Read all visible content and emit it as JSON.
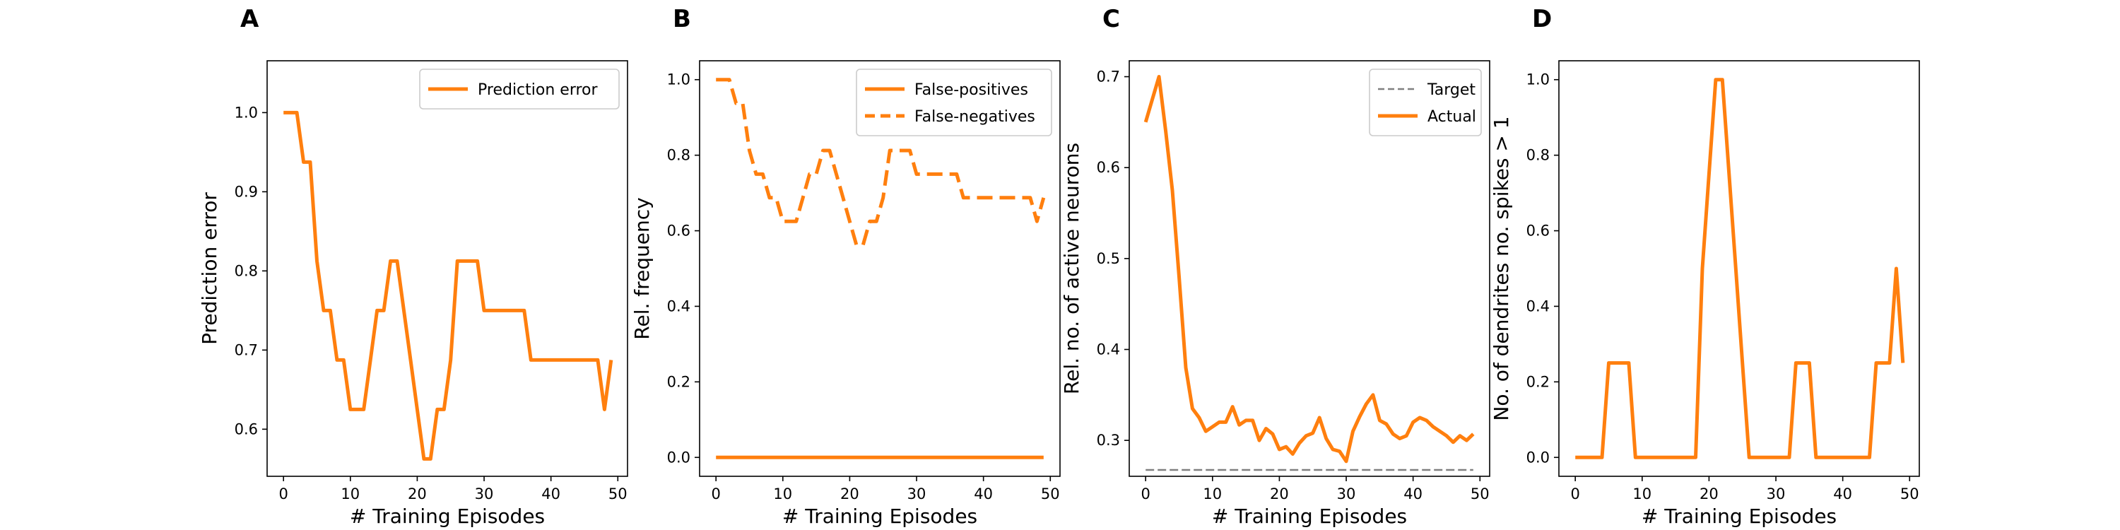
{
  "chart_data": [
    {
      "panel_letter": "A",
      "type": "line",
      "xlabel": "# Training Episodes",
      "ylabel": "Prediction error",
      "xlim": [
        -2.45,
        51.45
      ],
      "ylim": [
        0.5405,
        1.0655
      ],
      "xticks": [
        0,
        10,
        20,
        30,
        40,
        50
      ],
      "yticks": [
        0.6,
        0.7,
        0.8,
        0.9,
        1.0
      ],
      "ytick_labels": [
        "0.6",
        "0.7",
        "0.8",
        "0.9",
        "1.0"
      ],
      "legend": {
        "position": "top-right"
      },
      "colors": {
        "series": "#ff7f0e"
      },
      "series": [
        {
          "name": "Prediction error",
          "style": "solid",
          "color": "#ff7f0e",
          "x": [
            0,
            1,
            2,
            3,
            4,
            5,
            6,
            7,
            8,
            9,
            10,
            11,
            12,
            13,
            14,
            15,
            16,
            17,
            18,
            19,
            20,
            21,
            22,
            23,
            24,
            25,
            26,
            27,
            28,
            29,
            30,
            31,
            32,
            33,
            34,
            35,
            36,
            37,
            38,
            39,
            40,
            41,
            42,
            43,
            44,
            45,
            46,
            47,
            48,
            49
          ],
          "y": [
            1.0,
            1.0,
            1.0,
            0.9375,
            0.9375,
            0.8125,
            0.75,
            0.75,
            0.6875,
            0.6875,
            0.625,
            0.625,
            0.625,
            0.6875,
            0.75,
            0.75,
            0.8125,
            0.8125,
            0.75,
            0.6875,
            0.625,
            0.5625,
            0.5625,
            0.625,
            0.625,
            0.6875,
            0.8125,
            0.8125,
            0.8125,
            0.8125,
            0.75,
            0.75,
            0.75,
            0.75,
            0.75,
            0.75,
            0.75,
            0.6875,
            0.6875,
            0.6875,
            0.6875,
            0.6875,
            0.6875,
            0.6875,
            0.6875,
            0.6875,
            0.6875,
            0.6875,
            0.625,
            0.6875
          ]
        }
      ]
    },
    {
      "panel_letter": "B",
      "type": "line",
      "xlabel": "# Training Episodes",
      "ylabel": "Rel. frequency",
      "xlim": [
        -2.45,
        51.45
      ],
      "ylim": [
        -0.05,
        1.05
      ],
      "xticks": [
        0,
        10,
        20,
        30,
        40,
        50
      ],
      "yticks": [
        0.0,
        0.2,
        0.4,
        0.6,
        0.8,
        1.0
      ],
      "ytick_labels": [
        "0.0",
        "0.2",
        "0.4",
        "0.6",
        "0.8",
        "1.0"
      ],
      "legend": {
        "position": "top-right"
      },
      "colors": {
        "series": "#ff7f0e"
      },
      "series": [
        {
          "name": "False-positives",
          "style": "solid",
          "color": "#ff7f0e",
          "x": [
            0,
            49
          ],
          "y": [
            0.0,
            0.0
          ]
        },
        {
          "name": "False-negatives",
          "style": "dashed",
          "color": "#ff7f0e",
          "x": [
            0,
            1,
            2,
            3,
            4,
            5,
            6,
            7,
            8,
            9,
            10,
            11,
            12,
            13,
            14,
            15,
            16,
            17,
            18,
            19,
            20,
            21,
            22,
            23,
            24,
            25,
            26,
            27,
            28,
            29,
            30,
            31,
            32,
            33,
            34,
            35,
            36,
            37,
            38,
            39,
            40,
            41,
            42,
            43,
            44,
            45,
            46,
            47,
            48,
            49
          ],
          "y": [
            1.0,
            1.0,
            1.0,
            0.9375,
            0.9375,
            0.8125,
            0.75,
            0.75,
            0.6875,
            0.6875,
            0.625,
            0.625,
            0.625,
            0.6875,
            0.75,
            0.75,
            0.8125,
            0.8125,
            0.75,
            0.6875,
            0.625,
            0.5625,
            0.5625,
            0.625,
            0.625,
            0.6875,
            0.8125,
            0.8125,
            0.8125,
            0.8125,
            0.75,
            0.75,
            0.75,
            0.75,
            0.75,
            0.75,
            0.75,
            0.6875,
            0.6875,
            0.6875,
            0.6875,
            0.6875,
            0.6875,
            0.6875,
            0.6875,
            0.6875,
            0.6875,
            0.6875,
            0.625,
            0.6875
          ]
        }
      ]
    },
    {
      "panel_letter": "C",
      "type": "line",
      "xlabel": "# Training Episodes",
      "ylabel": "Rel. no. of active neurons",
      "xlim": [
        -2.45,
        51.45
      ],
      "ylim": [
        0.2605,
        0.7175
      ],
      "xticks": [
        0,
        10,
        20,
        30,
        40,
        50
      ],
      "yticks": [
        0.3,
        0.4,
        0.5,
        0.6,
        0.7
      ],
      "ytick_labels": [
        "0.3",
        "0.4",
        "0.5",
        "0.6",
        "0.7"
      ],
      "legend": {
        "position": "top-right"
      },
      "colors": {
        "series": "#ff7f0e",
        "target": "#808080"
      },
      "series": [
        {
          "name": "Target",
          "style": "dashed",
          "color": "#808080",
          "x": [
            0,
            49
          ],
          "y": [
            0.2675,
            0.2675
          ]
        },
        {
          "name": "Actual",
          "style": "solid",
          "color": "#ff7f0e",
          "x": [
            0,
            1,
            2,
            3,
            4,
            5,
            6,
            7,
            8,
            9,
            10,
            11,
            12,
            13,
            14,
            15,
            16,
            17,
            18,
            19,
            20,
            21,
            22,
            23,
            24,
            25,
            26,
            27,
            28,
            29,
            30,
            31,
            32,
            33,
            34,
            35,
            36,
            37,
            38,
            39,
            40,
            41,
            42,
            43,
            44,
            45,
            46,
            47,
            48,
            49
          ],
          "y": [
            0.65,
            0.675,
            0.7,
            0.64,
            0.575,
            0.48,
            0.38,
            0.335,
            0.325,
            0.31,
            0.315,
            0.32,
            0.32,
            0.337,
            0.317,
            0.322,
            0.322,
            0.3,
            0.313,
            0.307,
            0.29,
            0.293,
            0.285,
            0.297,
            0.305,
            0.308,
            0.325,
            0.302,
            0.29,
            0.288,
            0.277,
            0.31,
            0.326,
            0.34,
            0.35,
            0.322,
            0.318,
            0.307,
            0.302,
            0.305,
            0.32,
            0.325,
            0.322,
            0.315,
            0.31,
            0.305,
            0.298,
            0.305,
            0.3,
            0.307
          ]
        }
      ]
    },
    {
      "panel_letter": "D",
      "type": "line",
      "xlabel": "# Training Episodes",
      "ylabel": "No. of dendrites no. spikes > 1",
      "xlim": [
        -2.45,
        51.45
      ],
      "ylim": [
        -0.05,
        1.05
      ],
      "xticks": [
        0,
        10,
        20,
        30,
        40,
        50
      ],
      "yticks": [
        0.0,
        0.2,
        0.4,
        0.6,
        0.8,
        1.0
      ],
      "ytick_labels": [
        "0.0",
        "0.2",
        "0.4",
        "0.6",
        "0.8",
        "1.0"
      ],
      "colors": {
        "series": "#ff7f0e"
      },
      "series": [
        {
          "style": "solid",
          "color": "#ff7f0e",
          "x": [
            0,
            1,
            2,
            3,
            4,
            5,
            6,
            7,
            8,
            9,
            10,
            11,
            12,
            13,
            14,
            15,
            16,
            17,
            18,
            19,
            20,
            21,
            22,
            23,
            24,
            25,
            26,
            27,
            28,
            29,
            30,
            31,
            32,
            33,
            34,
            35,
            36,
            37,
            38,
            39,
            40,
            41,
            42,
            43,
            44,
            45,
            46,
            47,
            48,
            49
          ],
          "y": [
            0,
            0,
            0,
            0,
            0,
            0.25,
            0.25,
            0.25,
            0.25,
            0,
            0,
            0,
            0,
            0,
            0,
            0,
            0,
            0,
            0,
            0.5,
            0.75,
            1.0,
            1.0,
            0.75,
            0.5,
            0.25,
            0,
            0,
            0,
            0,
            0,
            0,
            0,
            0.25,
            0.25,
            0.25,
            0,
            0,
            0,
            0,
            0,
            0,
            0,
            0,
            0,
            0.25,
            0.25,
            0.25,
            0.5,
            0.25
          ]
        }
      ]
    }
  ]
}
